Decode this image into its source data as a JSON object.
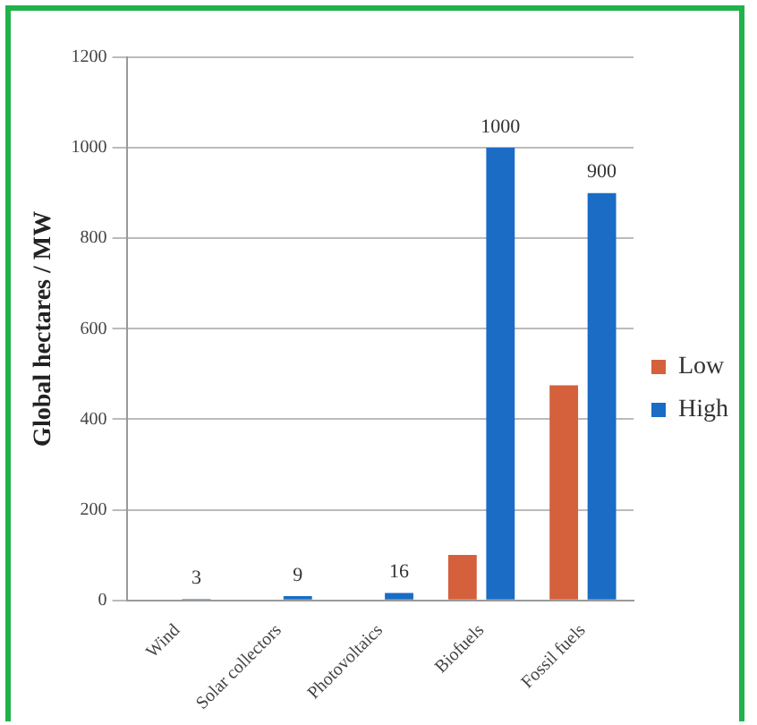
{
  "chart_data": {
    "type": "bar",
    "ylabel": "Global hectares / MW",
    "categories": [
      "Wind",
      "Solar collectors",
      "Photovoltaics",
      "Biofuels",
      "Fossil fuels"
    ],
    "series": [
      {
        "name": "Low",
        "color": "#d4603c",
        "values": [
          null,
          null,
          null,
          100,
          475
        ]
      },
      {
        "name": "High",
        "color": "#1a6cc4",
        "values": [
          3,
          9,
          16,
          1000,
          900
        ],
        "value_labels": [
          "3",
          "9",
          "16",
          "1000",
          "900"
        ]
      }
    ],
    "ylim": [
      0,
      1200
    ],
    "yticks": [
      0,
      200,
      400,
      600,
      800,
      1000,
      1200
    ],
    "grid": "y",
    "legend": "right"
  }
}
